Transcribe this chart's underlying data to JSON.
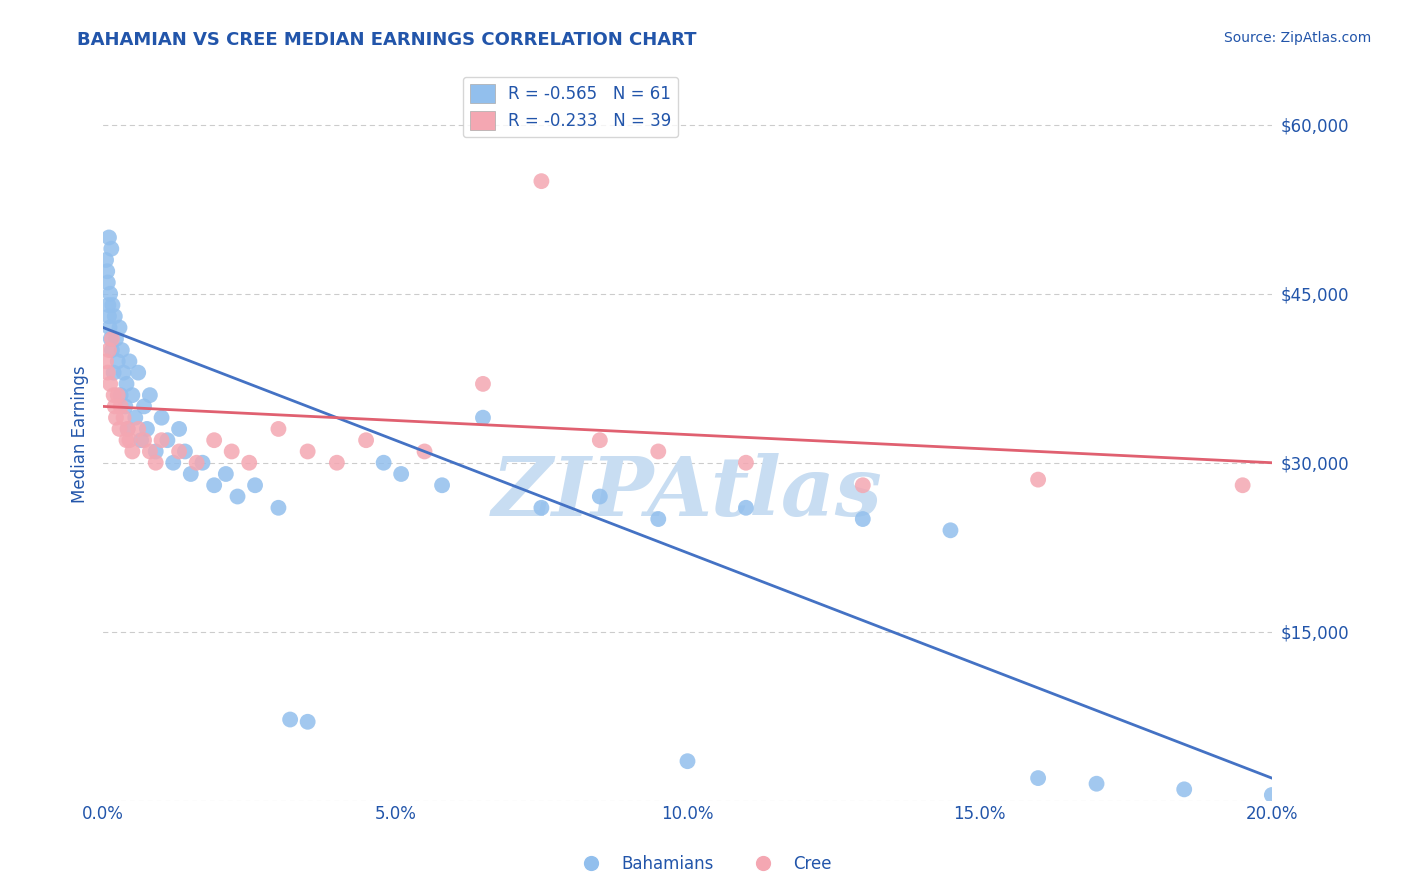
{
  "title": "BAHAMIAN VS CREE MEDIAN EARNINGS CORRELATION CHART",
  "source_text": "Source: ZipAtlas.com",
  "xlabel_vals": [
    0.0,
    5.0,
    10.0,
    15.0,
    20.0
  ],
  "ylabel_ticks": [
    0,
    15000,
    30000,
    45000,
    60000
  ],
  "ylabel_labels": [
    "",
    "$15,000",
    "$30,000",
    "$45,000",
    "$60,000"
  ],
  "ylabel": "Median Earnings",
  "xlim": [
    0.0,
    20.0
  ],
  "ylim": [
    0,
    65000
  ],
  "bahamian_color": "#92bfed",
  "cree_color": "#f4a7b2",
  "bahamian_line_color": "#4472c4",
  "cree_line_color": "#e06070",
  "R_bahamian": -0.565,
  "N_bahamian": 61,
  "R_cree": -0.233,
  "N_cree": 39,
  "bahamian_x": [
    0.05,
    0.07,
    0.08,
    0.09,
    0.1,
    0.1,
    0.11,
    0.12,
    0.13,
    0.14,
    0.15,
    0.16,
    0.18,
    0.2,
    0.22,
    0.25,
    0.28,
    0.3,
    0.32,
    0.35,
    0.38,
    0.4,
    0.42,
    0.45,
    0.5,
    0.55,
    0.6,
    0.65,
    0.7,
    0.75,
    0.8,
    0.9,
    1.0,
    1.1,
    1.2,
    1.3,
    1.4,
    1.5,
    1.7,
    1.9,
    2.1,
    2.3,
    2.6,
    3.0,
    3.2,
    3.5,
    4.8,
    5.1,
    5.8,
    6.5,
    7.5,
    8.5,
    9.5,
    10.0,
    11.0,
    13.0,
    14.5,
    16.0,
    17.0,
    18.5,
    20.0
  ],
  "bahamian_y": [
    48000,
    47000,
    46000,
    44000,
    50000,
    43000,
    42000,
    45000,
    41000,
    49000,
    40000,
    44000,
    38000,
    43000,
    41000,
    39000,
    42000,
    36000,
    40000,
    38000,
    35000,
    37000,
    33000,
    39000,
    36000,
    34000,
    38000,
    32000,
    35000,
    33000,
    36000,
    31000,
    34000,
    32000,
    30000,
    33000,
    31000,
    29000,
    30000,
    28000,
    29000,
    27000,
    28000,
    26000,
    7200,
    7000,
    30000,
    29000,
    28000,
    34000,
    26000,
    27000,
    25000,
    3500,
    26000,
    25000,
    24000,
    2000,
    1500,
    1000,
    500
  ],
  "cree_x": [
    0.05,
    0.08,
    0.1,
    0.12,
    0.15,
    0.18,
    0.2,
    0.22,
    0.25,
    0.28,
    0.3,
    0.35,
    0.4,
    0.42,
    0.45,
    0.5,
    0.6,
    0.7,
    0.8,
    0.9,
    1.0,
    1.3,
    1.6,
    1.9,
    2.2,
    2.5,
    3.0,
    3.5,
    4.0,
    4.5,
    5.5,
    6.5,
    7.5,
    8.5,
    9.5,
    11.0,
    13.0,
    16.0,
    19.5
  ],
  "cree_y": [
    39000,
    38000,
    40000,
    37000,
    41000,
    36000,
    35000,
    34000,
    36000,
    33000,
    35000,
    34000,
    32000,
    33000,
    32000,
    31000,
    33000,
    32000,
    31000,
    30000,
    32000,
    31000,
    30000,
    32000,
    31000,
    30000,
    33000,
    31000,
    30000,
    32000,
    31000,
    37000,
    55000,
    32000,
    31000,
    30000,
    28000,
    28500,
    28000
  ],
  "watermark": "ZIPAtlas",
  "watermark_color": "#c8ddf2",
  "title_color": "#2255aa",
  "tick_color": "#2255aa",
  "grid_color": "#cccccc",
  "background_color": "#ffffff",
  "blue_line_x0": 0.0,
  "blue_line_y0": 42000,
  "blue_line_x1": 20.0,
  "blue_line_y1": 2000,
  "pink_line_x0": 0.0,
  "pink_line_y0": 35000,
  "pink_line_x1": 20.0,
  "pink_line_y1": 30000
}
